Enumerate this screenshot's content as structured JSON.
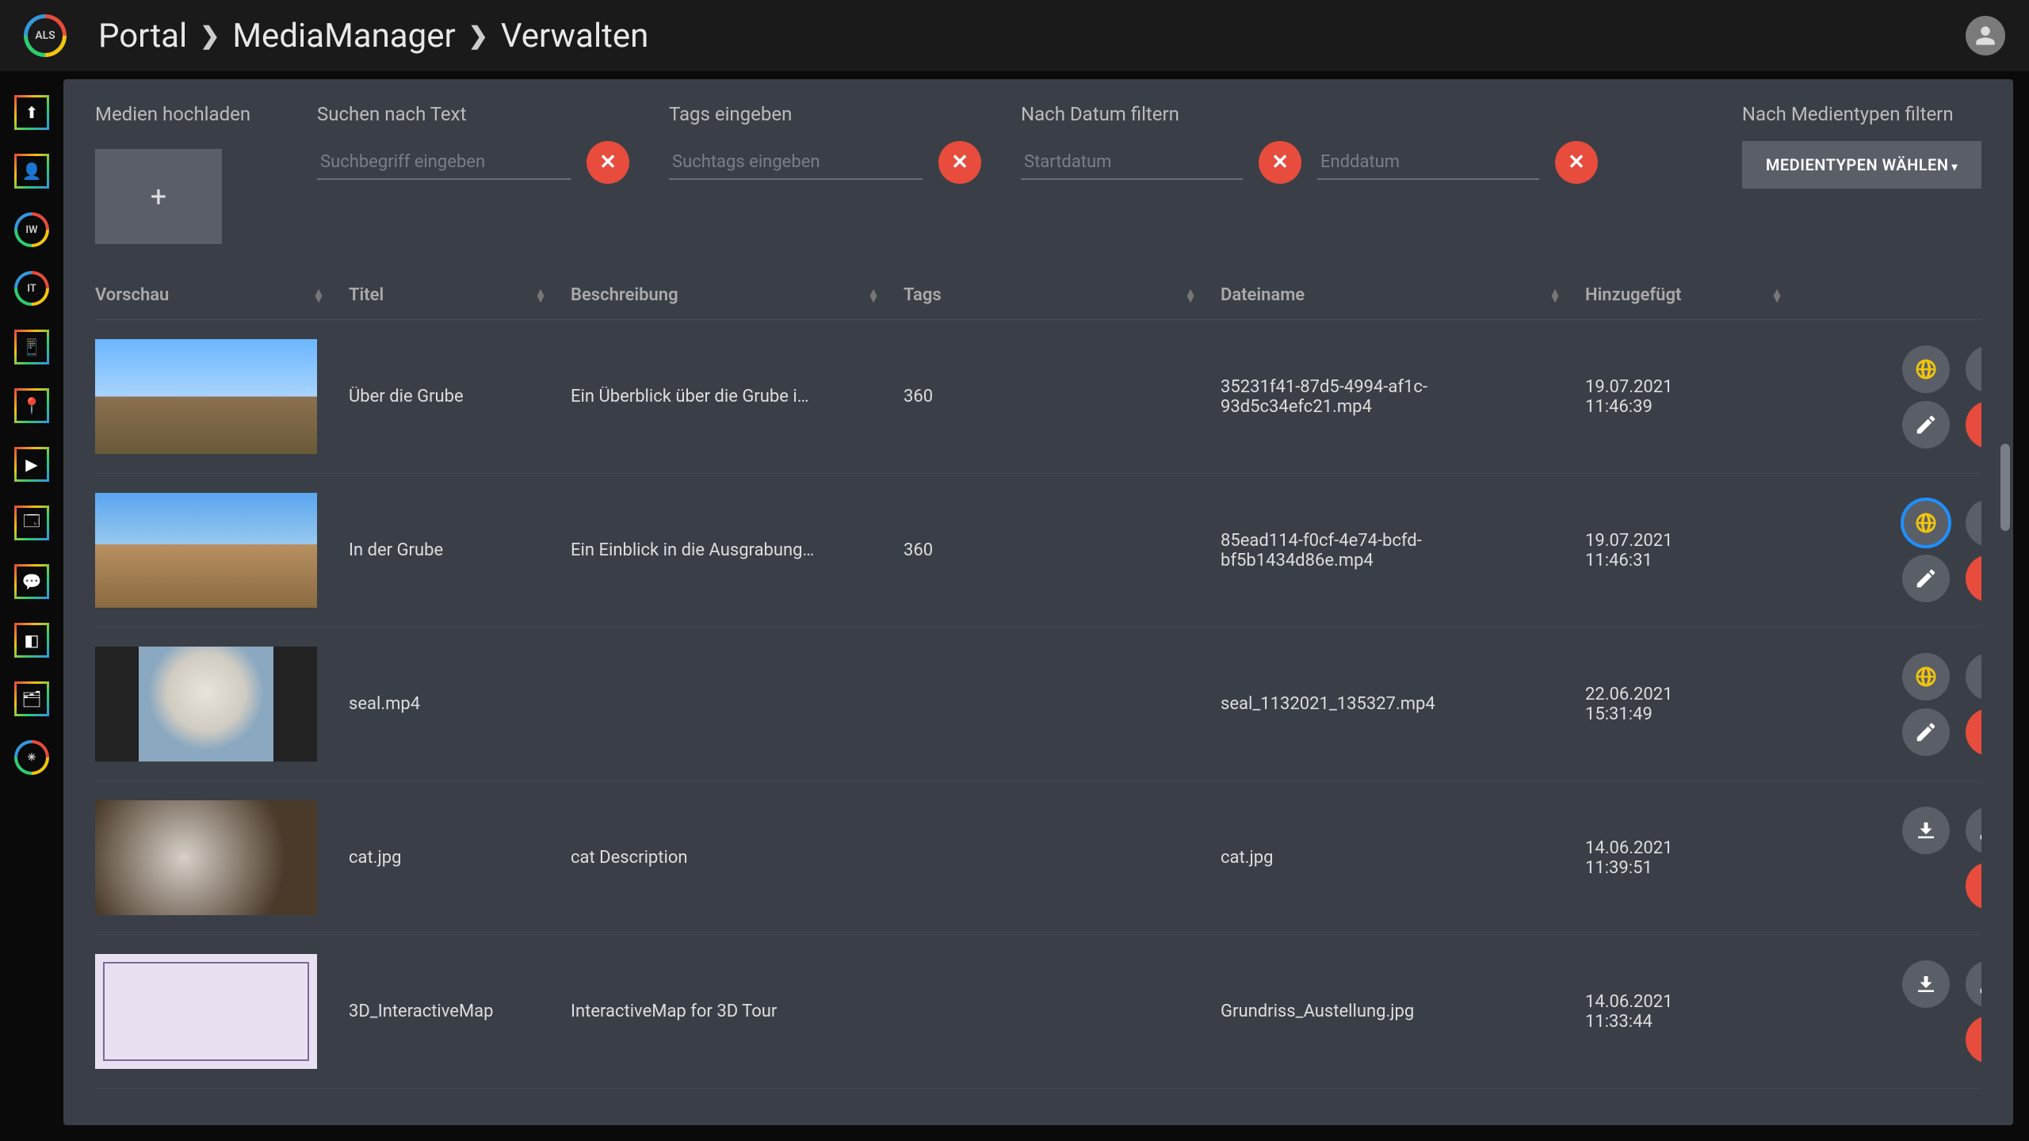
{
  "logo_text": "ALS",
  "breadcrumb": [
    "Portal",
    "MediaManager",
    "Verwalten"
  ],
  "rail": [
    {
      "kind": "square",
      "glyph": "⬆"
    },
    {
      "kind": "square",
      "glyph": "👤"
    },
    {
      "kind": "round",
      "text": "IW"
    },
    {
      "kind": "round",
      "text": "IT"
    },
    {
      "kind": "square",
      "glyph": "📱"
    },
    {
      "kind": "square",
      "glyph": "📍"
    },
    {
      "kind": "square",
      "glyph": "▶"
    },
    {
      "kind": "square",
      "glyph": "🗔"
    },
    {
      "kind": "square",
      "glyph": "💬"
    },
    {
      "kind": "square",
      "glyph": "◧"
    },
    {
      "kind": "square",
      "glyph": "🗂"
    },
    {
      "kind": "round",
      "text": "✳"
    }
  ],
  "filters": {
    "upload_label": "Medien hochladen",
    "search_label": "Suchen nach Text",
    "search_placeholder": "Suchbegriff eingeben",
    "tags_label": "Tags eingeben",
    "tags_placeholder": "Suchtags eingeben",
    "date_label": "Nach Datum filtern",
    "start_placeholder": "Startdatum",
    "end_placeholder": "Enddatum",
    "mediatype_label": "Nach Medientypen filtern",
    "mediatype_button": "MEDIENTYPEN WÄHLEN"
  },
  "columns": [
    "Vorschau",
    "Titel",
    "Beschreibung",
    "Tags",
    "Dateiname",
    "Hinzugefügt"
  ],
  "rows": [
    {
      "thumb": "sky",
      "title": "Über die Grube",
      "desc": "Ein Überblick über die Grube i…",
      "tags": "360",
      "file": "35231f41-87d5-4994-af1c-93d5c34efc21.mp4",
      "date": "19.07.2021 11:46:39",
      "globe": true,
      "globe_hl": false
    },
    {
      "thumb": "sky2",
      "title": "In der Grube",
      "desc": "Ein Einblick in die Ausgrabung…",
      "tags": "360",
      "file": "85ead114-f0cf-4e74-bcfd-bf5b1434d86e.mp4",
      "date": "19.07.2021 11:46:31",
      "globe": true,
      "globe_hl": true
    },
    {
      "thumb": "seal",
      "title": "seal.mp4",
      "desc": "",
      "tags": "",
      "file": "seal_1132021_135327.mp4",
      "date": "22.06.2021 15:31:49",
      "globe": true,
      "globe_hl": false
    },
    {
      "thumb": "cat",
      "title": "cat.jpg",
      "desc": "cat Description",
      "tags": "",
      "file": "cat.jpg",
      "date": "14.06.2021 11:39:51",
      "globe": false,
      "globe_hl": false
    },
    {
      "thumb": "map",
      "title": "3D_InteractiveMap",
      "desc": "InteractiveMap for 3D Tour",
      "tags": "",
      "file": "Grundriss_Austellung.jpg",
      "date": "14.06.2021 11:33:44",
      "globe": false,
      "globe_hl": false
    }
  ]
}
